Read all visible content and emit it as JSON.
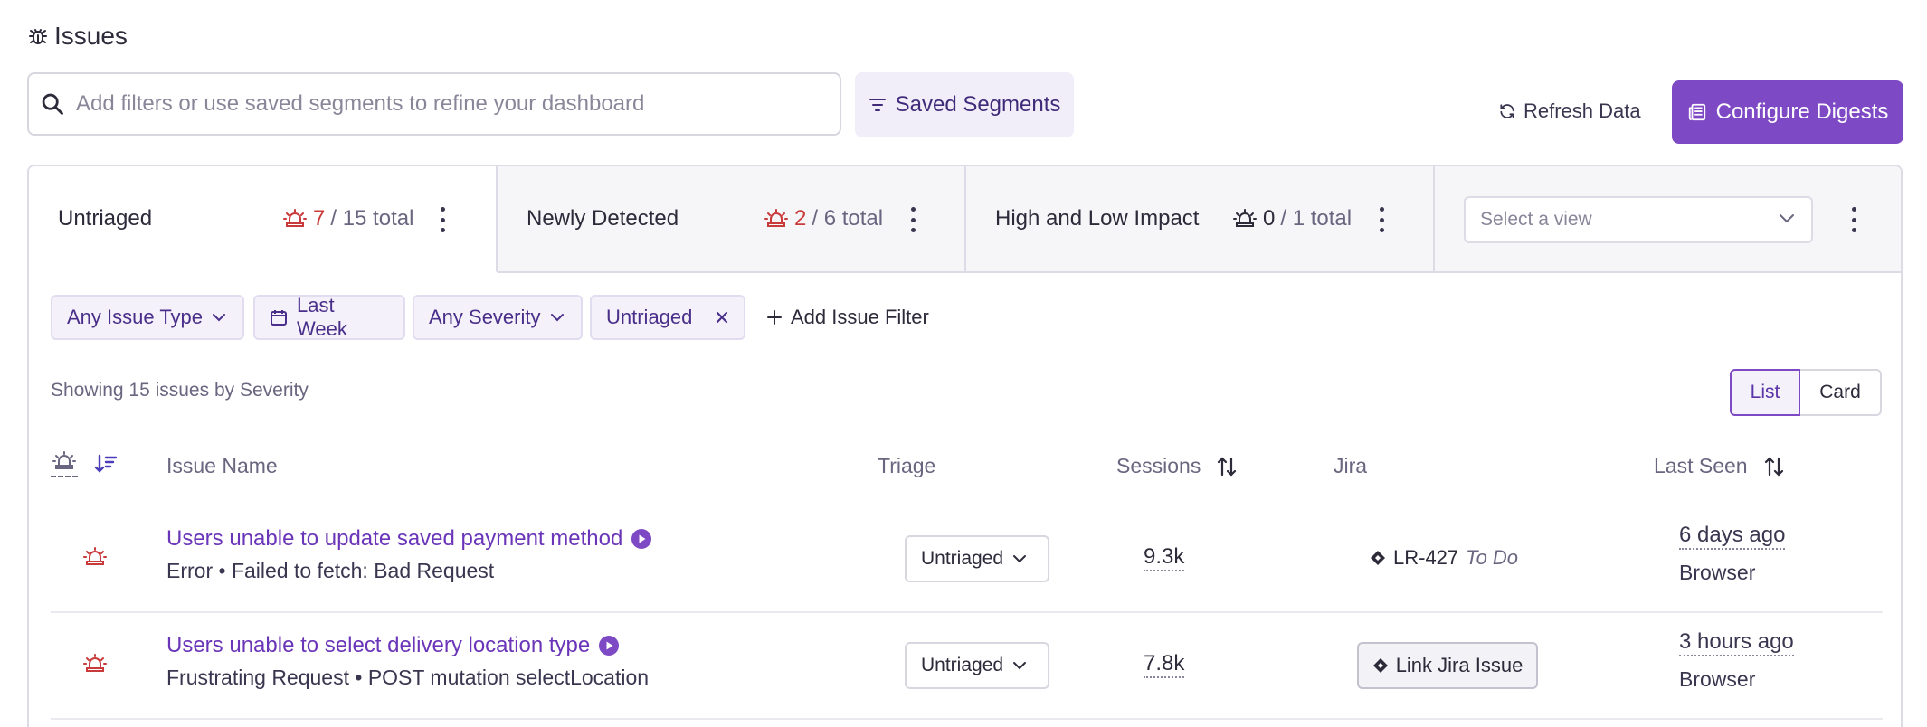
{
  "header": {
    "title": "Issues",
    "search_placeholder": "Add filters or use saved segments to refine your dashboard",
    "saved_segments_label": "Saved Segments",
    "refresh_label": "Refresh Data",
    "configure_label": "Configure Digests"
  },
  "tabs": [
    {
      "name": "Untriaged",
      "count": "7",
      "total": "/ 15 total"
    },
    {
      "name": "Newly Detected",
      "count": "2",
      "total": "/ 6 total"
    },
    {
      "name": "High and Low Impact",
      "count": "0",
      "total": "/ 1 total"
    }
  ],
  "view_select": {
    "placeholder": "Select a view"
  },
  "filters": {
    "issue_type": "Any Issue Type",
    "date": "Last Week",
    "severity": "Any Severity",
    "status": "Untriaged",
    "add_filter": "Add Issue Filter"
  },
  "summary": "Showing 15 issues by Severity",
  "view_toggle": {
    "list": "List",
    "card": "Card"
  },
  "columns": {
    "issue_name": "Issue Name",
    "triage": "Triage",
    "sessions": "Sessions",
    "jira": "Jira",
    "last_seen": "Last Seen"
  },
  "rows": [
    {
      "title": "Users unable to update saved payment method",
      "subtitle": "Error • Failed to fetch: Bad Request",
      "triage": "Untriaged",
      "sessions": "9.3k",
      "jira_key": "LR-427",
      "jira_status": "To Do",
      "last_seen": "6 days ago",
      "platform": "Browser"
    },
    {
      "title": "Users unable to select delivery location type",
      "subtitle": "Frustrating Request • POST mutation selectLocation",
      "triage": "Untriaged",
      "sessions": "7.8k",
      "jira_link_label": "Link Jira Issue",
      "last_seen": "3 hours ago",
      "platform": "Browser"
    }
  ],
  "colors": {
    "accent": "#7e49c4",
    "severity_red": "#c93a3a",
    "link_purple": "#6a35b8"
  }
}
